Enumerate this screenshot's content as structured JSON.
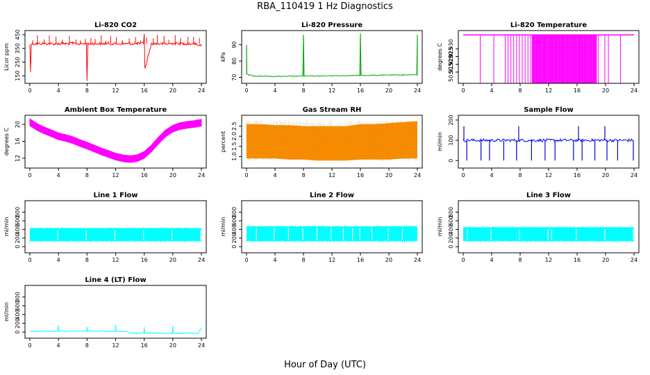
{
  "figure": {
    "title": "RBA_110419  1 Hz Diagnostics",
    "xlabel": "Hour of Day (UTC)"
  },
  "chart_data": [
    {
      "type": "line",
      "title": "Li-820 CO2",
      "ylabel": "Licor ppm",
      "color": "#ff0000",
      "xlim": [
        0,
        24
      ],
      "ylim": [
        120,
        460
      ],
      "yticks": [
        150,
        250,
        350,
        450
      ],
      "yticklabels": [
        "150",
        "250",
        "350",
        "450"
      ],
      "xticks": [
        0,
        4,
        8,
        12,
        16,
        20,
        24
      ],
      "xticklabels": [
        "0",
        "4",
        "8",
        "12",
        "16",
        "20",
        "24"
      ],
      "series": [
        {
          "x": [
            0,
            0.1,
            0.2,
            0.5,
            1,
            2,
            3,
            4,
            5,
            6,
            7,
            7.9,
            8,
            8.1,
            9,
            10,
            11,
            12,
            13,
            14,
            15,
            15.9,
            16,
            16.1,
            17,
            18,
            19,
            20,
            21,
            22,
            23,
            24
          ],
          "y": [
            380,
            180,
            385,
            382,
            384,
            386,
            383,
            385,
            384,
            386,
            383,
            384,
            120,
            383,
            385,
            384,
            386,
            383,
            384,
            385,
            384,
            386,
            460,
            200,
            385,
            384,
            383,
            386,
            384,
            385,
            383,
            375
          ]
        }
      ]
    },
    {
      "type": "line",
      "title": "Li-820 Pressure",
      "ylabel": "kPa",
      "color": "#00aa00",
      "xlim": [
        0,
        24
      ],
      "ylim": [
        68.5,
        97
      ],
      "yticks": [
        70,
        80,
        90
      ],
      "yticklabels": [
        "70",
        "80",
        "90"
      ],
      "xticks": [
        0,
        4,
        8,
        12,
        16,
        20,
        24
      ],
      "xticklabels": [
        "0",
        "4",
        "8",
        "12",
        "16",
        "20",
        "24"
      ],
      "series": [
        {
          "x": [
            0,
            0.05,
            0.3,
            1,
            2,
            4,
            6,
            7.9,
            8,
            8.1,
            10,
            12,
            14,
            15.9,
            16,
            16.1,
            18,
            20,
            22,
            23.9,
            24
          ],
          "y": [
            90,
            72,
            71.5,
            71,
            70.8,
            70.6,
            70.7,
            70.8,
            96,
            70.8,
            70.9,
            71,
            71.1,
            71.2,
            97,
            71.2,
            71.3,
            71.4,
            71.5,
            71.6,
            96
          ]
        }
      ]
    },
    {
      "type": "line",
      "title": "Li-820 Temperature",
      "ylabel": "degrees C",
      "color": "#ff00ff",
      "xlim": [
        0,
        24
      ],
      "ylim": [
        50.91,
        50.94
      ],
      "yticks": [
        50.915,
        50.92,
        50.925,
        50.93
      ],
      "yticklabels": [
        "50.915",
        "50.920",
        "50.925",
        "50.930"
      ],
      "xticks": [
        0,
        4,
        8,
        12,
        16,
        20,
        24
      ],
      "xticklabels": [
        "0",
        "4",
        "8",
        "12",
        "16",
        "20",
        "24"
      ],
      "series": [
        {
          "level_high": 50.939,
          "drop_to": 50.91,
          "x": [
            2.4,
            4.3,
            5.9,
            6.3,
            6.7,
            7.1,
            7.5,
            7.9,
            8.3,
            8.7,
            9.1,
            9.5,
            9.9,
            10.3,
            10.7,
            11.1,
            11.5,
            11.9,
            12.3,
            12.7,
            13.1,
            13.5,
            13.9,
            14.3,
            14.7,
            15.1,
            15.5,
            15.9,
            16.3,
            16.7,
            17.1,
            17.5,
            17.9,
            18.3,
            18.7,
            19.0,
            19.9,
            20.4,
            22.1
          ]
        }
      ]
    },
    {
      "type": "line",
      "title": "Ambient Box Temperature",
      "ylabel": "degrees C",
      "color": "#ff00ff",
      "xlim": [
        0,
        24
      ],
      "ylim": [
        10.5,
        21.5
      ],
      "yticks": [
        12,
        16,
        20
      ],
      "yticklabels": [
        "12",
        "16",
        "20"
      ],
      "xticks": [
        0,
        4,
        8,
        12,
        16,
        20,
        24
      ],
      "xticklabels": [
        "0",
        "4",
        "8",
        "12",
        "16",
        "20",
        "24"
      ],
      "series": [
        {
          "band": 1.6,
          "x": [
            0,
            1,
            2,
            3,
            4,
            5,
            6,
            7,
            8,
            9,
            10,
            11,
            12,
            13,
            14,
            15,
            16,
            17,
            18,
            19,
            20,
            21,
            22,
            23,
            24
          ],
          "y": [
            20.5,
            19.4,
            18.6,
            17.9,
            17.2,
            16.8,
            16.3,
            15.6,
            15.0,
            14.3,
            13.6,
            13.0,
            12.4,
            12.0,
            11.8,
            12.0,
            12.8,
            14.3,
            16.2,
            17.9,
            19.0,
            19.6,
            19.9,
            20.1,
            20.4
          ]
        }
      ]
    },
    {
      "type": "area",
      "title": "Gas Stream RH",
      "ylabel": "percent",
      "color": "#ff8c00",
      "color2": "#b8860b",
      "xlim": [
        0,
        24
      ],
      "ylim": [
        0.6,
        2.9
      ],
      "yticks": [
        1.0,
        1.5,
        2.0,
        2.5
      ],
      "yticklabels": [
        "1.0",
        "1.5",
        "2.0",
        "2.5"
      ],
      "xticks": [
        0,
        4,
        8,
        12,
        16,
        20,
        24
      ],
      "xticklabels": [
        "0",
        "4",
        "8",
        "12",
        "16",
        "20",
        "24"
      ],
      "series": [
        {
          "x": [
            0,
            2,
            4,
            6,
            8,
            10,
            12,
            14,
            16,
            18,
            20,
            22,
            24
          ],
          "upper": [
            2.6,
            2.6,
            2.55,
            2.55,
            2.5,
            2.5,
            2.5,
            2.5,
            2.6,
            2.6,
            2.65,
            2.7,
            2.75
          ],
          "lower": [
            0.9,
            0.9,
            0.9,
            0.85,
            0.85,
            0.8,
            0.8,
            0.8,
            0.85,
            0.85,
            0.85,
            0.9,
            0.9
          ]
        }
      ]
    },
    {
      "type": "line",
      "title": "Sample Flow",
      "ylabel": "ml/min",
      "color": "#0000dd",
      "xlim": [
        0,
        24
      ],
      "ylim": [
        -20,
        210
      ],
      "yticks": [
        0,
        100,
        200
      ],
      "yticklabels": [
        "0",
        "100",
        "200"
      ],
      "xticks": [
        0,
        4,
        8,
        12,
        16,
        20,
        24
      ],
      "xticklabels": [
        "0",
        "4",
        "8",
        "12",
        "16",
        "20",
        "24"
      ],
      "series": [
        {
          "base": 100,
          "dips": [
            0.5,
            2.5,
            3.7,
            5.7,
            7.5,
            9.6,
            11.5,
            12.9,
            15.5,
            16.7,
            18.5,
            20.2,
            21.7,
            23.9
          ],
          "spikes": [
            0.1,
            7.8,
            16.2,
            19.9
          ]
        }
      ]
    },
    {
      "type": "area",
      "title": "Line 1 Flow",
      "ylabel": "ml/min",
      "color": "#00ffff",
      "xlim": [
        0,
        24
      ],
      "ylim": [
        -60,
        1000
      ],
      "yticks": [
        0,
        200,
        400,
        600,
        800
      ],
      "yticklabels": [
        "0",
        "200",
        "400",
        "600",
        "800"
      ],
      "xticks": [
        0,
        4,
        8,
        12,
        16,
        20,
        24
      ],
      "xticklabels": [
        "0",
        "4",
        "8",
        "12",
        "16",
        "20",
        "24"
      ],
      "series": [
        {
          "upper": 430,
          "lower": 130,
          "gaps": [
            3.9,
            7.9,
            11.9,
            15.9,
            19.9,
            23.9
          ]
        }
      ]
    },
    {
      "type": "area",
      "title": "Line 2 Flow",
      "ylabel": "ml/min",
      "color": "#00ffff",
      "xlim": [
        0,
        24
      ],
      "ylim": [
        -60,
        1000
      ],
      "yticks": [
        0,
        200,
        400,
        600,
        800
      ],
      "yticklabels": [
        "0",
        "200",
        "400",
        "600",
        "800"
      ],
      "xticks": [
        0,
        4,
        8,
        12,
        16,
        20,
        24
      ],
      "xticklabels": [
        "0",
        "4",
        "8",
        "12",
        "16",
        "20",
        "24"
      ],
      "series": [
        {
          "upper": 470,
          "lower": 130,
          "gaps": [
            1.4,
            3.9,
            5.9,
            7.9,
            9.9,
            11.9,
            13.6,
            14.9,
            15.9,
            17.6,
            19.9,
            21.9
          ]
        }
      ]
    },
    {
      "type": "area",
      "title": "Line 3 Flow",
      "ylabel": "ml/min",
      "color": "#00ffff",
      "xlim": [
        0,
        24
      ],
      "ylim": [
        -60,
        1000
      ],
      "yticks": [
        0,
        200,
        400,
        600,
        800
      ],
      "yticklabels": [
        "0",
        "200",
        "400",
        "600",
        "800"
      ],
      "xticks": [
        0,
        4,
        8,
        12,
        16,
        20,
        24
      ],
      "xticklabels": [
        "0",
        "4",
        "8",
        "12",
        "16",
        "20",
        "24"
      ],
      "series": [
        {
          "upper": 450,
          "lower": 130,
          "gaps": [
            0.6,
            3.9,
            7.9,
            11.9,
            12.4,
            15.9,
            19.9,
            23.9
          ]
        }
      ]
    },
    {
      "type": "line",
      "title": "Line 4 (LT) Flow",
      "ylabel": "ml/min",
      "color": "#00ffff",
      "xlim": [
        0,
        24
      ],
      "ylim": [
        -60,
        1000
      ],
      "yticks": [
        0,
        200,
        400,
        600,
        800
      ],
      "yticklabels": [
        "0",
        "200",
        "400",
        "600",
        "800"
      ],
      "xticks": [
        0,
        4,
        8,
        12,
        16,
        20,
        24
      ],
      "xticklabels": [
        "0",
        "4",
        "8",
        "12",
        "16",
        "20",
        "24"
      ],
      "series": [
        {
          "x": [
            0,
            3.95,
            4,
            4.05,
            7.95,
            8,
            8.05,
            11.95,
            12,
            12.05,
            13.5,
            14,
            15,
            15.95,
            16,
            16.05,
            17,
            18,
            19.95,
            20,
            20.05,
            21,
            22,
            23.5,
            24
          ],
          "y": [
            20,
            20,
            150,
            20,
            20,
            120,
            20,
            20,
            160,
            20,
            10,
            -20,
            -30,
            -20,
            110,
            -30,
            -20,
            -30,
            -30,
            150,
            -20,
            -30,
            -20,
            -30,
            100
          ]
        }
      ]
    }
  ]
}
